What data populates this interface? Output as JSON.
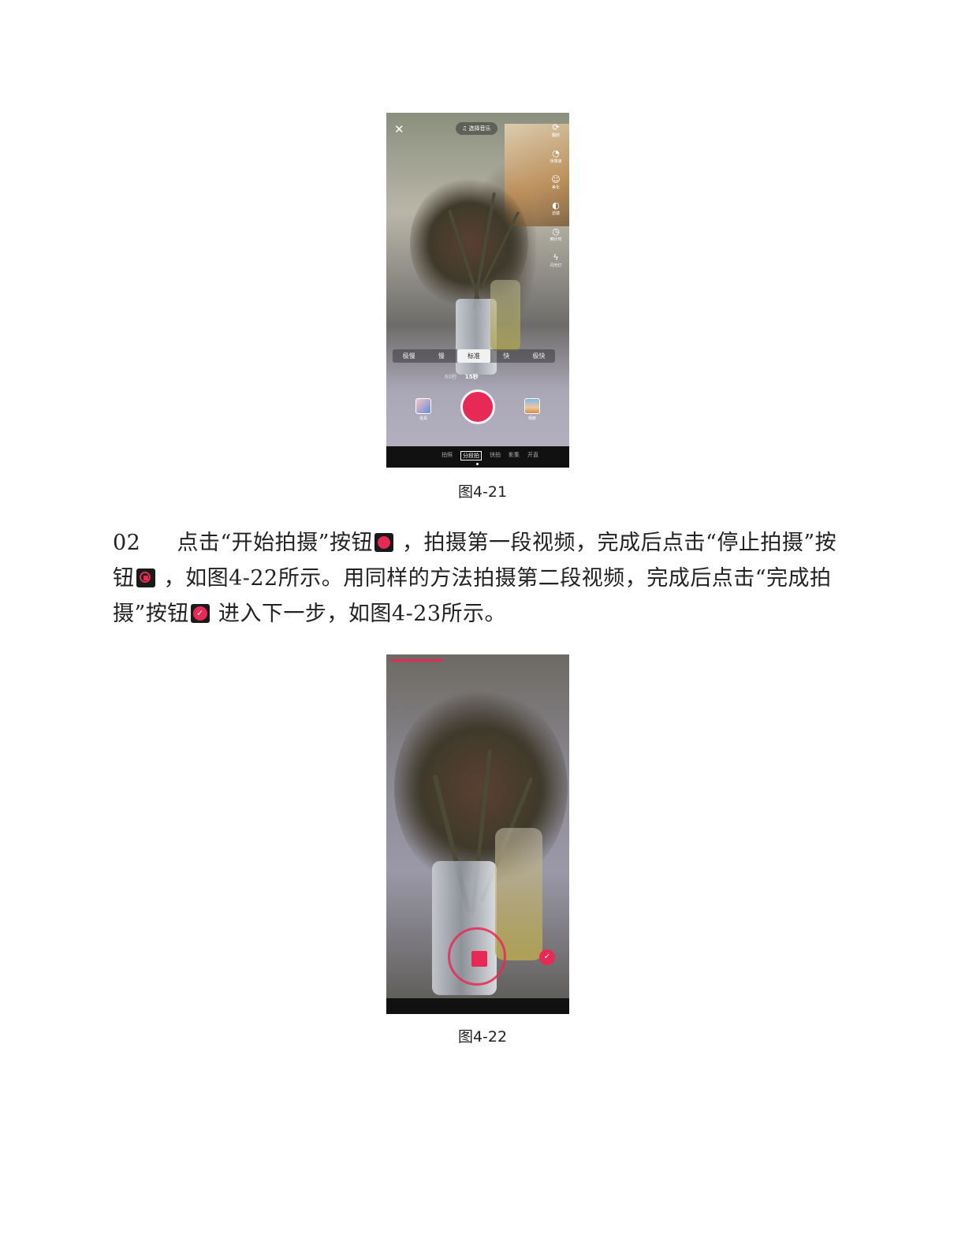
{
  "figure1": {
    "caption": "图4-21",
    "close_label": "✕",
    "music_button": "♫ 选择音乐",
    "side_tools": [
      {
        "icon": "flip-camera-icon",
        "glyph": "⟳",
        "label": "翻转"
      },
      {
        "icon": "speed-icon",
        "glyph": "◔",
        "label": "快慢速"
      },
      {
        "icon": "beauty-icon",
        "glyph": "☺",
        "label": "美化"
      },
      {
        "icon": "filter-icon",
        "glyph": "◐",
        "label": "滤镜"
      },
      {
        "icon": "timer-icon",
        "glyph": "◷",
        "label": "倒计时"
      },
      {
        "icon": "flash-icon",
        "glyph": "ϟ",
        "label": "闪光灯"
      }
    ],
    "speed_options": [
      "极慢",
      "慢",
      "标准",
      "快",
      "极快"
    ],
    "speed_selected": "标准",
    "durations": [
      "60秒",
      "15秒"
    ],
    "duration_selected": "15秒",
    "props_label": "道具",
    "upload_label": "相册",
    "modes": [
      "拍照",
      "分段拍",
      "快拍",
      "影集",
      "开直"
    ],
    "mode_selected": "分段拍"
  },
  "figure2": {
    "caption": "图4-22",
    "progress": 0.3,
    "done_glyph": "✓"
  },
  "paragraph": {
    "step_number": "02",
    "text_1": "点击“开始拍摄”按钮",
    "text_2": " ，拍摄第一段视频，完成后点击“停止拍摄”按钮",
    "text_3": " ，如图4-22所示。用同样的方法拍摄第二段视频，完成后点击“完成拍摄”按钮",
    "text_4": " 进入下一步，如图4-23所示。"
  },
  "colors": {
    "accent": "#e62a55",
    "background": "#ffffff",
    "text": "#222222"
  }
}
